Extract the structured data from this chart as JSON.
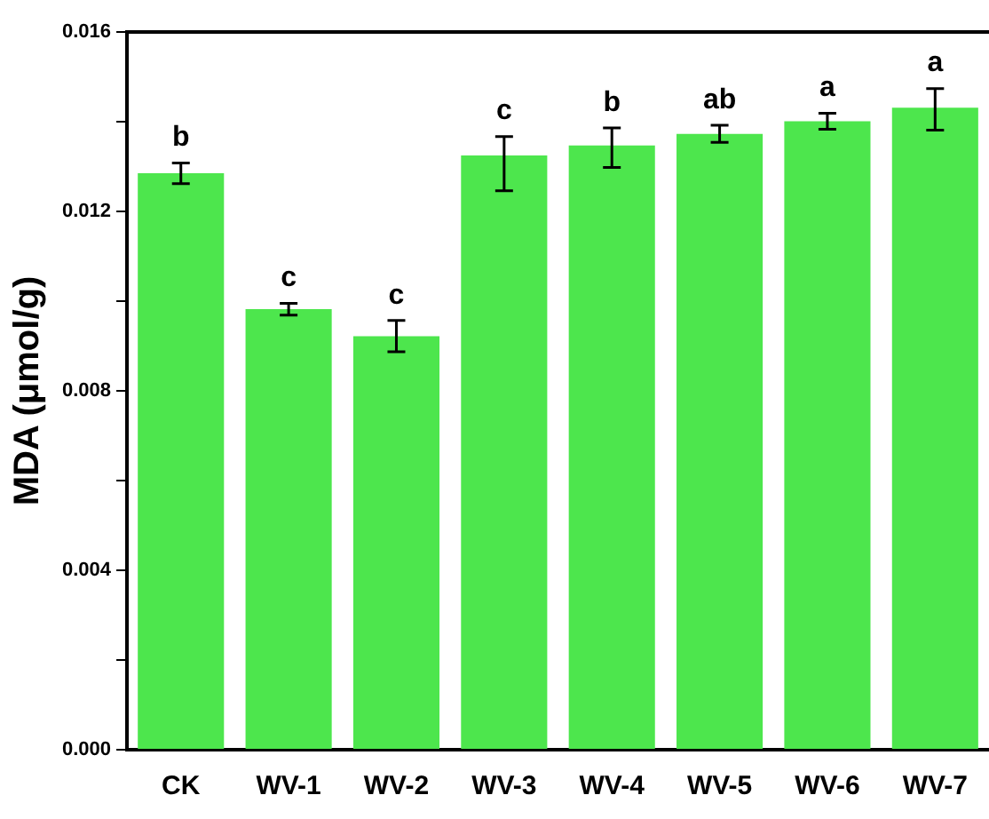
{
  "chart_data": {
    "type": "bar",
    "ylabel": "MDA (μmol/g)",
    "categories": [
      "CK",
      "WV-1",
      "WV-2",
      "WV-3",
      "WV-4",
      "WV-5",
      "WV-6",
      "WV-7"
    ],
    "values": [
      0.01285,
      0.00982,
      0.00922,
      0.01325,
      0.01347,
      0.01373,
      0.01401,
      0.01431
    ],
    "errors": [
      0.00023,
      0.00013,
      0.00035,
      [
        0.01246,
        0.01367
      ],
      [
        0.01298,
        0.01386
      ],
      0.00019,
      0.00018,
      [
        0.01381,
        0.01474
      ]
    ],
    "color": "#4de64d",
    "ylim": [
      0,
      0.016
    ],
    "yticks": [
      {
        "value": 0,
        "label": "0.000"
      },
      {
        "value": 0.002,
        "label": null
      },
      {
        "value": 0.004,
        "label": "0.004"
      },
      {
        "value": 0.006,
        "label": null
      },
      {
        "value": 0.008,
        "label": "0.008"
      },
      {
        "value": 0.01,
        "label": null
      },
      {
        "value": 0.012,
        "label": "0.012"
      },
      {
        "value": 0.014,
        "label": null
      },
      {
        "value": 0.016,
        "label": "0.016"
      }
    ],
    "annotations": [
      "b",
      "c",
      "c",
      "c",
      "b",
      "ab",
      "a",
      "a"
    ],
    "grid": false,
    "legend": false
  }
}
